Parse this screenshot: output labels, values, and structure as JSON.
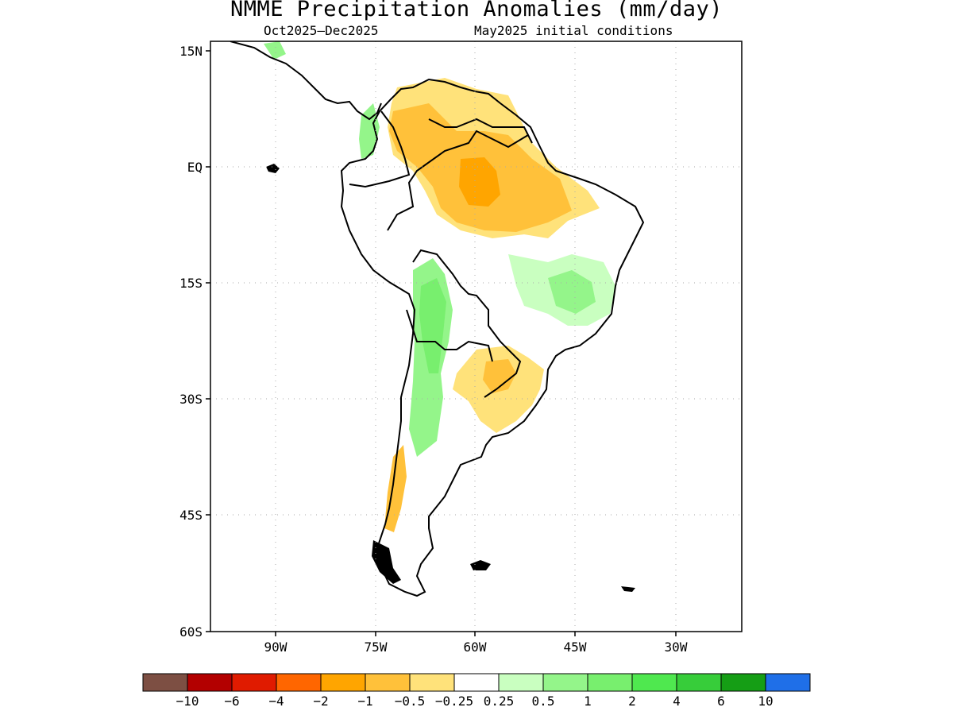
{
  "title": "NMME Precipitation Anomalies (mm/day)",
  "subtitle_left": "Oct2025–Dec2025",
  "subtitle_right": "May2025 initial conditions",
  "map": {
    "lon_labels": [
      "90W",
      "75W",
      "60W",
      "45W",
      "30W"
    ],
    "lat_labels": [
      "15N",
      "EQ",
      "15S",
      "30S",
      "45S",
      "60S"
    ]
  },
  "colorbar": {
    "colors": [
      "#7d4f43",
      "#b30000",
      "#e01b00",
      "#ff6600",
      "#ffa500",
      "#ffc13a",
      "#ffe27a",
      "#ffffff",
      "#c9ffc0",
      "#94f58a",
      "#78ef6e",
      "#4fe84f",
      "#37cd3a",
      "#159e15",
      "#1f6fe8"
    ],
    "tick_labels": [
      "−10",
      "−6",
      "−4",
      "−2",
      "−1",
      "−0.5",
      "−0.25",
      "0.25",
      "0.5",
      "1",
      "2",
      "4",
      "6",
      "10"
    ]
  }
}
